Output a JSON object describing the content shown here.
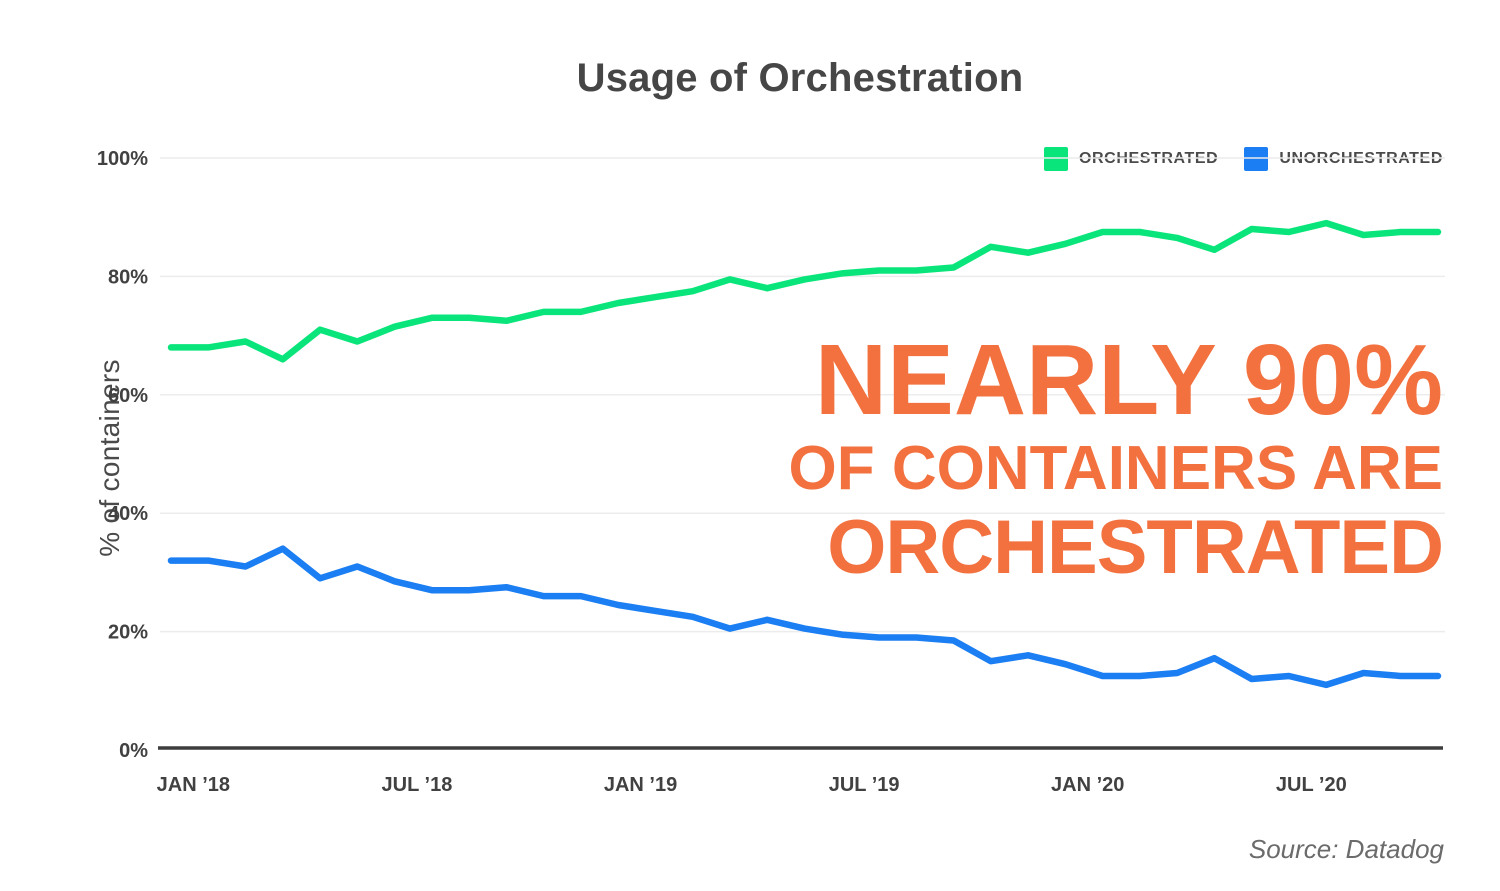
{
  "header": {
    "title": "Usage of Orchestration"
  },
  "chart_data": {
    "type": "line",
    "title": "Usage of Orchestration",
    "xlabel": "",
    "ylabel": "% of containers",
    "ylim": [
      0,
      100
    ],
    "grid": true,
    "legend_position": "top-right",
    "y_tick_labels": [
      "0%",
      "20%",
      "40%",
      "60%",
      "80%",
      "100%"
    ],
    "x_tick_labels": [
      "JAN ’18",
      "JUL ’18",
      "JAN ’19",
      "JUL ’19",
      "JAN ’20",
      "JUL ’20"
    ],
    "x": [
      "Jan 2018",
      "Feb 2018",
      "Mar 2018",
      "Apr 2018",
      "May 2018",
      "Jun 2018",
      "Jul 2018",
      "Aug 2018",
      "Sep 2018",
      "Oct 2018",
      "Nov 2018",
      "Dec 2018",
      "Jan 2019",
      "Feb 2019",
      "Mar 2019",
      "Apr 2019",
      "May 2019",
      "Jun 2019",
      "Jul 2019",
      "Aug 2019",
      "Sep 2019",
      "Oct 2019",
      "Nov 2019",
      "Dec 2019",
      "Jan 2020",
      "Feb 2020",
      "Mar 2020",
      "Apr 2020",
      "May 2020",
      "Jun 2020",
      "Jul 2020",
      "Aug 2020",
      "Sep 2020",
      "Oct 2020",
      "Nov 2020"
    ],
    "series": [
      {
        "name": "ORCHESTRATED",
        "color": "#0ae57b",
        "values": [
          68,
          68,
          69,
          66,
          71,
          69,
          71.5,
          73,
          73,
          72.5,
          74,
          74,
          75.5,
          76.5,
          77.5,
          79.5,
          78,
          79.5,
          80.5,
          81,
          81,
          81.5,
          85,
          84,
          85.5,
          87.5,
          87.5,
          86.5,
          84.5,
          88,
          87.5,
          89,
          87,
          87.5,
          87.5
        ]
      },
      {
        "name": "UNORCHESTRATED",
        "color": "#1b7ef2",
        "values": [
          32,
          32,
          31,
          34,
          29,
          31,
          28.5,
          27,
          27,
          27.5,
          26,
          26,
          24.5,
          23.5,
          22.5,
          20.5,
          22,
          20.5,
          19.5,
          19,
          19,
          18.5,
          15,
          16,
          14.5,
          12.5,
          12.5,
          13,
          15.5,
          12,
          12.5,
          11,
          13,
          12.5,
          12.5
        ]
      }
    ]
  },
  "annotation": {
    "line1": "NEARLY 90%",
    "line2": "OF CONTAINERS ARE",
    "line3": "ORCHESTRATED",
    "color": "#f2713f"
  },
  "source": {
    "label": "Source: Datadog"
  },
  "colors": {
    "title_text": "#464646",
    "tick_text": "#414141",
    "gridline": "#ececec",
    "axis_line": "#3d3d3d"
  }
}
